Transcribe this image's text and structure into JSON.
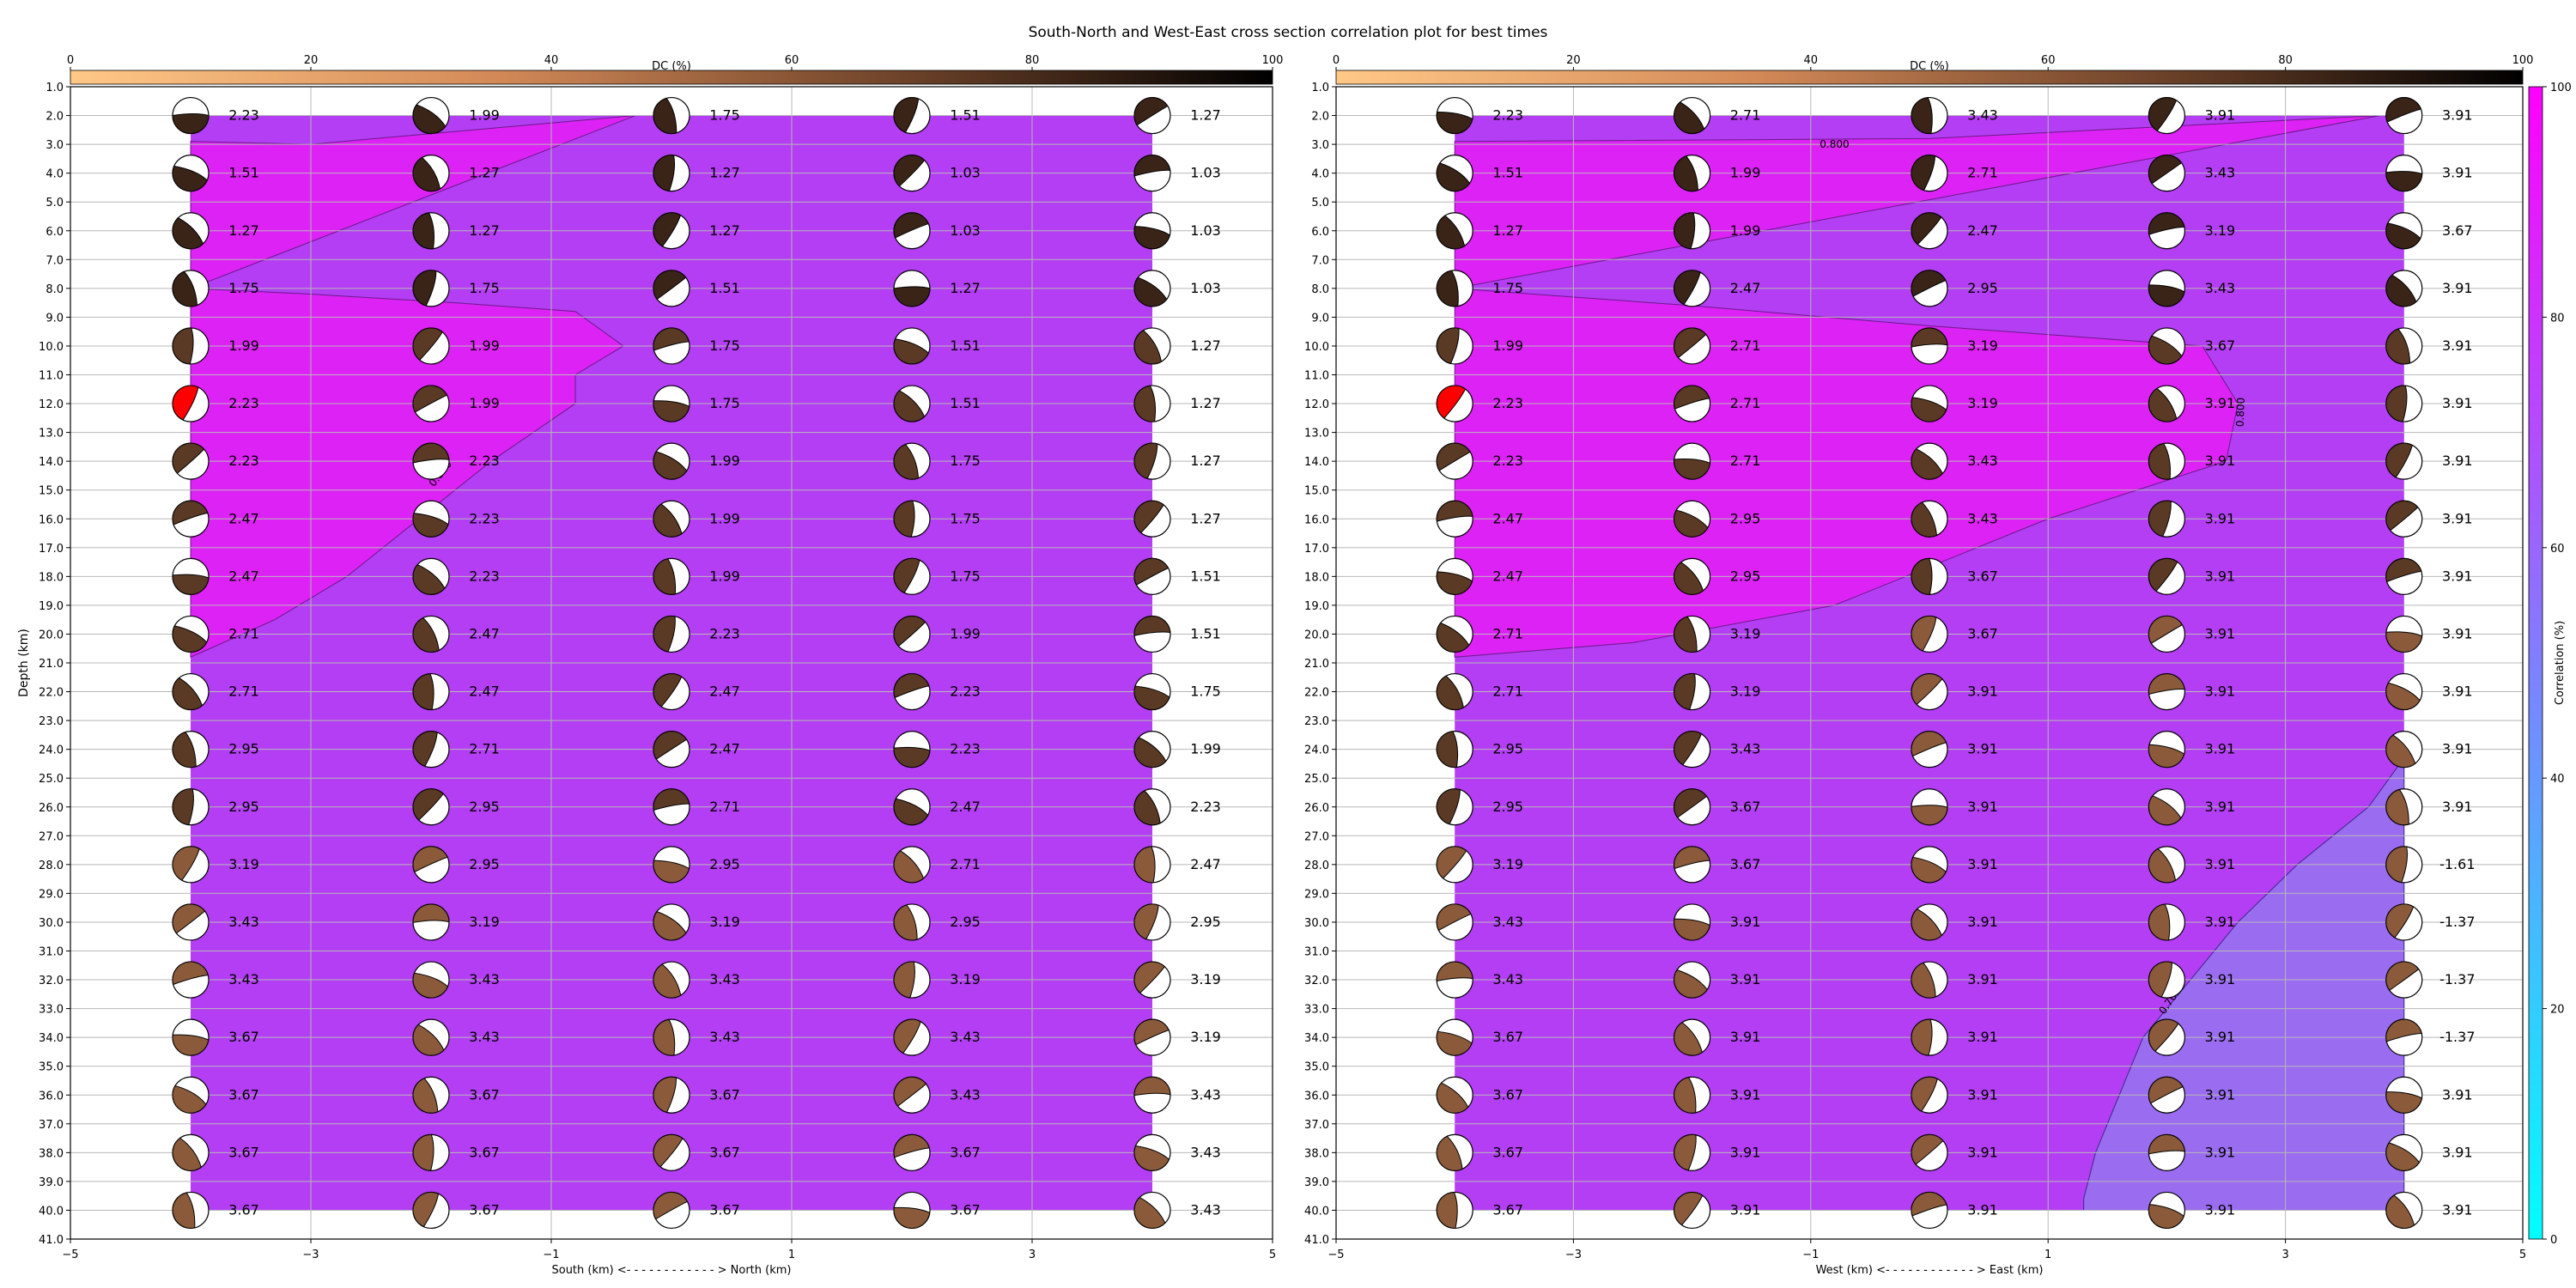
{
  "title": "South-North and West-East cross section correlation plot for best times",
  "colorbar_dc": {
    "label": "DC (%)",
    "ticks": [
      0,
      20,
      40,
      60,
      80,
      100
    ]
  },
  "colorbar_corr": {
    "label": "Correlation (%)",
    "ticks": [
      0,
      20,
      40,
      60,
      80,
      100
    ]
  },
  "colors": {
    "corr_high": "#dd22f5",
    "corr_mid": "#b33ef3",
    "corr_low": "#9a6cf0",
    "best_solution": "#ff0000"
  },
  "chart_data": [
    {
      "type": "heatmap",
      "name": "south_north",
      "xlabel": "South (km) <- - - - - - - - - - - - > North (km)",
      "ylabel": "Depth (km)",
      "xlim": [
        -5,
        5
      ],
      "ylim": [
        41,
        1
      ],
      "x_ticks": [
        "-5",
        "-3",
        "-1",
        "1",
        "3",
        "5"
      ],
      "y_ticks": [
        "1.0",
        "2.0",
        "3.0",
        "4.0",
        "5.0",
        "6.0",
        "7.0",
        "8.0",
        "9.0",
        "10.0",
        "11.0",
        "12.0",
        "13.0",
        "14.0",
        "15.0",
        "16.0",
        "17.0",
        "18.0",
        "19.0",
        "20.0",
        "21.0",
        "22.0",
        "23.0",
        "24.0",
        "25.0",
        "26.0",
        "27.0",
        "28.0",
        "29.0",
        "30.0",
        "31.0",
        "32.0",
        "33.0",
        "34.0",
        "35.0",
        "36.0",
        "37.0",
        "38.0",
        "39.0",
        "40.0",
        "41.0"
      ],
      "grid": true,
      "positions": [
        -4,
        -2,
        0,
        2,
        4
      ],
      "depths": [
        2,
        4,
        6,
        8,
        10,
        12,
        14,
        16,
        18,
        20,
        22,
        24,
        26,
        28,
        30,
        32,
        34,
        36,
        38,
        40
      ],
      "best_solution": {
        "position": -4,
        "depth": 12
      },
      "contour_labels": [
        "0.800"
      ],
      "contour_0800": [
        [
          -4,
          2.9
        ],
        [
          -3,
          3.0
        ],
        [
          -0.3,
          2.0
        ],
        [
          -4,
          8.0
        ],
        [
          -3,
          8.2
        ],
        [
          -1.8,
          8.5
        ],
        [
          -0.8,
          8.8
        ],
        [
          -0.4,
          10.0
        ],
        [
          -0.8,
          11.0
        ],
        [
          -0.8,
          12.0
        ],
        [
          -1.5,
          14.0
        ],
        [
          -2.1,
          16.0
        ],
        [
          -2.7,
          18.0
        ],
        [
          -3.3,
          19.5
        ],
        [
          -4,
          20.8
        ]
      ],
      "time_labels": [
        [
          "2.23",
          "1.99",
          "1.75",
          "1.51",
          "1.27"
        ],
        [
          "1.51",
          "1.27",
          "1.27",
          "1.03",
          "1.03"
        ],
        [
          "1.27",
          "1.27",
          "1.27",
          "1.03",
          "1.03"
        ],
        [
          "1.75",
          "1.75",
          "1.51",
          "1.27",
          "1.03"
        ],
        [
          "1.99",
          "1.99",
          "1.75",
          "1.51",
          "1.27"
        ],
        [
          "2.23",
          "1.99",
          "1.75",
          "1.51",
          "1.27"
        ],
        [
          "2.23",
          "2.23",
          "1.99",
          "1.75",
          "1.27"
        ],
        [
          "2.47",
          "2.23",
          "1.99",
          "1.75",
          "1.27"
        ],
        [
          "2.47",
          "2.23",
          "1.99",
          "1.75",
          "1.51"
        ],
        [
          "2.71",
          "2.47",
          "2.23",
          "1.99",
          "1.51"
        ],
        [
          "2.71",
          "2.47",
          "2.47",
          "2.23",
          "1.75"
        ],
        [
          "2.95",
          "2.71",
          "2.47",
          "2.23",
          "1.99"
        ],
        [
          "2.95",
          "2.95",
          "2.71",
          "2.47",
          "2.23"
        ],
        [
          "3.19",
          "2.95",
          "2.95",
          "2.71",
          "2.47"
        ],
        [
          "3.43",
          "3.19",
          "3.19",
          "2.95",
          "2.95"
        ],
        [
          "3.43",
          "3.43",
          "3.43",
          "3.19",
          "3.19"
        ],
        [
          "3.67",
          "3.43",
          "3.43",
          "3.43",
          "3.19"
        ],
        [
          "3.67",
          "3.67",
          "3.67",
          "3.43",
          "3.43"
        ],
        [
          "3.67",
          "3.67",
          "3.67",
          "3.67",
          "3.43"
        ],
        [
          "3.67",
          "3.67",
          "3.67",
          "3.67",
          "3.43"
        ]
      ]
    },
    {
      "type": "heatmap",
      "name": "west_east",
      "xlabel": "West (km) <- - - - - - - - - - - - > East (km)",
      "ylabel": "",
      "xlim": [
        -5,
        5
      ],
      "ylim": [
        41,
        1
      ],
      "x_ticks": [
        "-5",
        "-3",
        "-1",
        "1",
        "3",
        "5"
      ],
      "y_ticks": [
        "1.0",
        "2.0",
        "3.0",
        "4.0",
        "5.0",
        "6.0",
        "7.0",
        "8.0",
        "9.0",
        "10.0",
        "11.0",
        "12.0",
        "13.0",
        "14.0",
        "15.0",
        "16.0",
        "17.0",
        "18.0",
        "19.0",
        "20.0",
        "21.0",
        "22.0",
        "23.0",
        "24.0",
        "25.0",
        "26.0",
        "27.0",
        "28.0",
        "29.0",
        "30.0",
        "31.0",
        "32.0",
        "33.0",
        "34.0",
        "35.0",
        "36.0",
        "37.0",
        "38.0",
        "39.0",
        "40.0",
        "41.0"
      ],
      "grid": true,
      "positions": [
        -4,
        -2,
        0,
        2,
        4
      ],
      "depths": [
        2,
        4,
        6,
        8,
        10,
        12,
        14,
        16,
        18,
        20,
        22,
        24,
        26,
        28,
        30,
        32,
        34,
        36,
        38,
        40
      ],
      "best_solution": {
        "position": -4,
        "depth": 12
      },
      "contour_labels": [
        "0.800",
        "0.800",
        "0.700"
      ],
      "contour_0800": [
        [
          -4,
          2.9
        ],
        [
          0,
          2.8
        ],
        [
          3.8,
          2.0
        ],
        [
          -4,
          8.0
        ],
        [
          -2,
          8.6
        ],
        [
          0,
          9.3
        ],
        [
          2.3,
          10.0
        ],
        [
          2.6,
          12.0
        ],
        [
          2.5,
          14.0
        ],
        [
          1.0,
          16.0
        ],
        [
          0.1,
          17.5
        ],
        [
          -0.8,
          19.0
        ],
        [
          -2.5,
          20.3
        ],
        [
          -4,
          20.8
        ]
      ],
      "contour_0700": [
        [
          4,
          24.3
        ],
        [
          3.7,
          26.0
        ],
        [
          3.1,
          28.0
        ],
        [
          2.6,
          30.0
        ],
        [
          2.2,
          32.0
        ],
        [
          1.8,
          34.0
        ],
        [
          1.6,
          36.0
        ],
        [
          1.4,
          38.0
        ],
        [
          1.3,
          39.6
        ],
        [
          1.3,
          40.0
        ]
      ],
      "time_labels": [
        [
          "2.23",
          "2.71",
          "3.43",
          "3.91",
          "3.91"
        ],
        [
          "1.51",
          "1.99",
          "2.71",
          "3.43",
          "3.91"
        ],
        [
          "1.27",
          "1.99",
          "2.47",
          "3.19",
          "3.67"
        ],
        [
          "1.75",
          "2.47",
          "2.95",
          "3.43",
          "3.91"
        ],
        [
          "1.99",
          "2.71",
          "3.19",
          "3.67",
          "3.91"
        ],
        [
          "2.23",
          "2.71",
          "3.19",
          "3.91",
          "3.91"
        ],
        [
          "2.23",
          "2.71",
          "3.43",
          "3.91",
          "3.91"
        ],
        [
          "2.47",
          "2.95",
          "3.43",
          "3.91",
          "3.91"
        ],
        [
          "2.47",
          "2.95",
          "3.67",
          "3.91",
          "3.91"
        ],
        [
          "2.71",
          "3.19",
          "3.67",
          "3.91",
          "3.91"
        ],
        [
          "2.71",
          "3.19",
          "3.91",
          "3.91",
          "3.91"
        ],
        [
          "2.95",
          "3.43",
          "3.91",
          "3.91",
          "3.91"
        ],
        [
          "2.95",
          "3.67",
          "3.91",
          "3.91",
          "3.91"
        ],
        [
          "3.19",
          "3.67",
          "3.91",
          "3.91",
          "-1.61"
        ],
        [
          "3.43",
          "3.91",
          "3.91",
          "3.91",
          "-1.37"
        ],
        [
          "3.43",
          "3.91",
          "3.91",
          "3.91",
          "-1.37"
        ],
        [
          "3.67",
          "3.91",
          "3.91",
          "3.91",
          "-1.37"
        ],
        [
          "3.67",
          "3.91",
          "3.91",
          "3.91",
          "3.91"
        ],
        [
          "3.67",
          "3.91",
          "3.91",
          "3.91",
          "3.91"
        ],
        [
          "3.67",
          "3.91",
          "3.91",
          "3.91",
          "3.91"
        ]
      ]
    }
  ]
}
